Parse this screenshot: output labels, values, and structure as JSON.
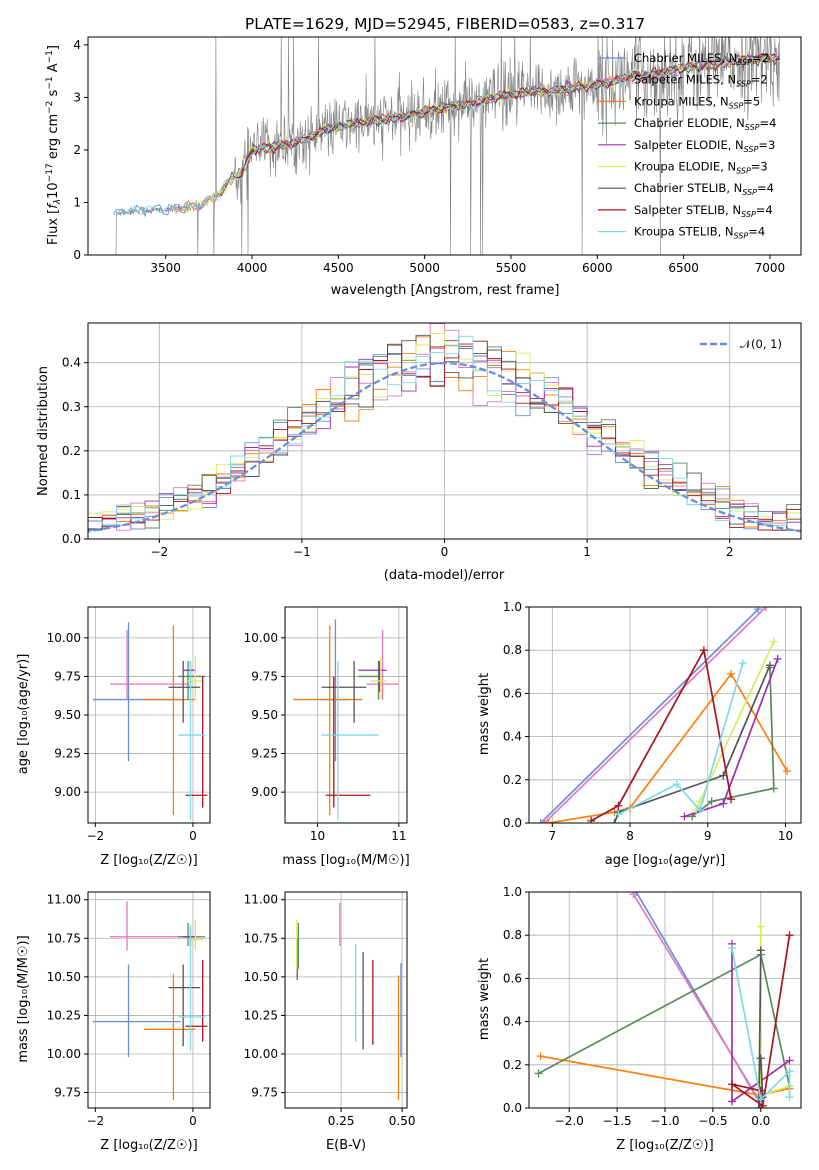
{
  "colors": {
    "Chabrier MILES": "#6b8fd6",
    "Salpeter MILES": "#e377c2",
    "Kroupa MILES": "#ff7f0e",
    "Chabrier ELODIE": "#5b8a5b",
    "Salpeter ELODIE": "#9b2fae",
    "Kroupa ELODIE": "#d4ee5a",
    "Chabrier STELIB": "#555555",
    "Salpeter STELIB": "#a8141c",
    "Kroupa STELIB": "#7fd8e8",
    "data": "#808080",
    "normal": "#6a8fd8"
  },
  "chart_data": [
    {
      "id": "spectrum",
      "type": "line",
      "title": "PLATE=1629, MJD=52945, FIBERID=0583, z=0.317",
      "xlabel": "wavelength [Angstrom, rest frame]",
      "ylabel_pre": "Flux [",
      "ylabel_fl": "f",
      "ylabel_sub": "λ",
      "ylabel_mid": "10",
      "ylabel_exp": "−17",
      "ylabel_post": " erg cm",
      "ylabel_e2": "−2",
      "ylabel_s": " s",
      "ylabel_e1": "−1",
      "ylabel_A": " A",
      "ylabel_e1b": "−1",
      "ylabel_end": "]",
      "xlim": [
        3050,
        7180
      ],
      "ylim": [
        0,
        4.15
      ],
      "xticks": [
        3500,
        4000,
        4500,
        5000,
        5500,
        6000,
        6500,
        7000
      ],
      "yticks": [
        0,
        1,
        2,
        3,
        4
      ],
      "continuum": {
        "x": [
          3200,
          3300,
          3400,
          3500,
          3600,
          3700,
          3800,
          3900,
          3950,
          4000,
          4100,
          4200,
          4300,
          4400,
          4500,
          4600,
          4700,
          4800,
          4900,
          5000,
          5100,
          5200,
          5300,
          5400,
          5500,
          5600,
          5700,
          5800,
          5900,
          6000,
          6100,
          6200,
          6300,
          6400,
          6500,
          6600,
          6700,
          6800,
          6900,
          7000
        ],
        "y": [
          0.8,
          0.84,
          0.86,
          0.85,
          0.9,
          0.95,
          1.15,
          1.5,
          1.6,
          2.0,
          2.05,
          2.1,
          2.2,
          2.35,
          2.45,
          2.5,
          2.55,
          2.6,
          2.65,
          2.72,
          2.8,
          2.82,
          2.9,
          3.0,
          3.05,
          3.1,
          3.12,
          3.15,
          3.2,
          3.25,
          3.3,
          3.4,
          3.42,
          3.5,
          3.55,
          3.6,
          3.65,
          3.7,
          3.72,
          3.75
        ]
      },
      "legend": [
        {
          "model": "Chabrier MILES",
          "nssp": "2"
        },
        {
          "model": "Salpeter MILES",
          "nssp": "2"
        },
        {
          "model": "Kroupa MILES",
          "nssp": "5"
        },
        {
          "model": "Chabrier ELODIE",
          "nssp": "4"
        },
        {
          "model": "Salpeter ELODIE",
          "nssp": "3"
        },
        {
          "model": "Kroupa ELODIE",
          "nssp": "3"
        },
        {
          "model": "Chabrier STELIB",
          "nssp": "4"
        },
        {
          "model": "Salpeter STELIB",
          "nssp": "4"
        },
        {
          "model": "Kroupa STELIB",
          "nssp": "4"
        }
      ],
      "legend_placement": "right",
      "grid": false
    },
    {
      "id": "residuals",
      "type": "histogram",
      "xlabel": "(data-model)/error",
      "ylabel": "Normed distribution",
      "xlim": [
        -2.5,
        2.5
      ],
      "ylim": [
        0,
        0.49
      ],
      "xticks": [
        -2,
        -1,
        0,
        1,
        2
      ],
      "yticks": [
        0.0,
        0.1,
        0.2,
        0.3,
        0.4
      ],
      "legend": "𝒩(0, 1)",
      "legend_placement": "top-right",
      "grid": true,
      "bin_width": 0.1
    },
    {
      "id": "Z-age",
      "type": "errorbar",
      "xlabel": "Z [log₁₀(Z/Z☉)]",
      "ylabel": "age  [log₁₀(age/yr)]",
      "xlim": [
        -2.15,
        0.35
      ],
      "ylim": [
        8.8,
        10.2
      ],
      "xticks": [
        -2,
        0
      ],
      "yticks": [
        9.0,
        9.25,
        9.5,
        9.75,
        10.0
      ],
      "grid": true,
      "points": [
        {
          "m": "Chabrier MILES",
          "x": -1.32,
          "xl": -2.05,
          "xh": -0.25,
          "y": 9.6,
          "yl": 9.2,
          "yh": 10.1
        },
        {
          "m": "Salpeter MILES",
          "x": -1.35,
          "xl": -1.7,
          "xh": -0.1,
          "y": 9.7,
          "yl": 9.6,
          "yh": 10.05
        },
        {
          "m": "Kroupa MILES",
          "x": -0.4,
          "xl": -1.0,
          "xh": 0.05,
          "y": 9.6,
          "yl": 8.85,
          "yh": 10.08
        },
        {
          "m": "Chabrier ELODIE",
          "x": -0.1,
          "xl": -0.3,
          "xh": 0.25,
          "y": 9.75,
          "yl": 9.6,
          "yh": 9.85
        },
        {
          "m": "Salpeter ELODIE",
          "x": -0.05,
          "xl": -0.2,
          "xh": 0.05,
          "y": 9.79,
          "yl": 9.65,
          "yh": 9.85
        },
        {
          "m": "Kroupa ELODIE",
          "x": 0.05,
          "xl": -0.1,
          "xh": 0.2,
          "y": 9.72,
          "yl": 9.6,
          "yh": 9.88
        },
        {
          "m": "Chabrier STELIB",
          "x": -0.2,
          "xl": -0.5,
          "xh": 0.15,
          "y": 9.68,
          "yl": 9.45,
          "yh": 9.85
        },
        {
          "m": "Salpeter STELIB",
          "x": 0.2,
          "xl": -0.15,
          "xh": 0.3,
          "y": 8.98,
          "yl": 8.9,
          "yh": 9.75
        },
        {
          "m": "Kroupa STELIB",
          "x": -0.05,
          "xl": -0.3,
          "xh": 0.25,
          "y": 9.37,
          "yl": 8.82,
          "yh": 9.85
        }
      ]
    },
    {
      "id": "mass-age",
      "type": "errorbar",
      "xlabel": "mass [log₁₀(M/M☉)]",
      "ylabel": "",
      "xlim": [
        9.6,
        11.1
      ],
      "ylim": [
        8.8,
        10.2
      ],
      "xticks": [
        10,
        11
      ],
      "yticks": [
        9.0,
        9.25,
        9.5,
        9.75,
        10.0
      ],
      "grid": true,
      "points": [
        {
          "m": "Chabrier MILES",
          "x": 10.22,
          "xl": 10.05,
          "xh": 10.4,
          "y": 9.6,
          "yl": 9.2,
          "yh": 10.12
        },
        {
          "m": "Salpeter MILES",
          "x": 10.8,
          "xl": 10.6,
          "xh": 11.0,
          "y": 9.7,
          "yl": 9.6,
          "yh": 10.05
        },
        {
          "m": "Kroupa MILES",
          "x": 10.15,
          "xl": 9.7,
          "xh": 10.55,
          "y": 9.6,
          "yl": 8.85,
          "yh": 10.08
        },
        {
          "m": "Chabrier ELODIE",
          "x": 10.75,
          "xl": 10.5,
          "xh": 10.8,
          "y": 9.75,
          "yl": 9.6,
          "yh": 9.85
        },
        {
          "m": "Salpeter ELODIE",
          "x": 10.76,
          "xl": 10.5,
          "xh": 10.85,
          "y": 9.79,
          "yl": 9.65,
          "yh": 9.85
        },
        {
          "m": "Kroupa ELODIE",
          "x": 10.78,
          "xl": 10.65,
          "xh": 10.85,
          "y": 9.72,
          "yl": 9.6,
          "yh": 9.88
        },
        {
          "m": "Chabrier STELIB",
          "x": 10.45,
          "xl": 10.05,
          "xh": 10.6,
          "y": 9.68,
          "yl": 9.45,
          "yh": 9.85
        },
        {
          "m": "Salpeter STELIB",
          "x": 10.2,
          "xl": 10.1,
          "xh": 10.65,
          "y": 8.98,
          "yl": 8.9,
          "yh": 9.75
        },
        {
          "m": "Kroupa STELIB",
          "x": 10.25,
          "xl": 10.05,
          "xh": 10.75,
          "y": 9.37,
          "yl": 8.82,
          "yh": 9.85
        }
      ]
    },
    {
      "id": "age-weight",
      "type": "line",
      "xlabel": "age  [log₁₀(age/yr)]",
      "ylabel": "mass weight",
      "xlim": [
        6.7,
        10.2
      ],
      "ylim": [
        0,
        1
      ],
      "xticks": [
        7,
        8,
        9,
        10
      ],
      "yticks": [
        0.0,
        0.2,
        0.4,
        0.6,
        0.8,
        1.0
      ],
      "grid": true,
      "series": [
        {
          "m": "Chabrier MILES",
          "x": [
            6.85,
            9.65
          ],
          "y": [
            0.0,
            0.99
          ]
        },
        {
          "m": "Salpeter MILES",
          "x": [
            6.9,
            9.75
          ],
          "y": [
            0.0,
            1.0
          ]
        },
        {
          "m": "Kroupa MILES",
          "x": [
            6.95,
            7.8,
            8.0,
            9.3,
            10.02
          ],
          "y": [
            0.0,
            0.05,
            0.07,
            0.69,
            0.24
          ]
        },
        {
          "m": "Chabrier ELODIE",
          "x": [
            8.8,
            9.05,
            9.85,
            9.8
          ],
          "y": [
            0.03,
            0.1,
            0.16,
            0.72
          ]
        },
        {
          "m": "Salpeter ELODIE",
          "x": [
            8.7,
            9.2,
            9.9
          ],
          "y": [
            0.03,
            0.09,
            0.76
          ]
        },
        {
          "m": "Kroupa ELODIE",
          "x": [
            8.85,
            8.9,
            9.85
          ],
          "y": [
            0.06,
            0.1,
            0.84
          ]
        },
        {
          "m": "Chabrier STELIB",
          "x": [
            7.8,
            7.85,
            9.2,
            9.8
          ],
          "y": [
            0.0,
            0.05,
            0.22,
            0.73
          ]
        },
        {
          "m": "Salpeter STELIB",
          "x": [
            7.5,
            7.85,
            8.95,
            9.3
          ],
          "y": [
            0.01,
            0.08,
            0.8,
            0.11
          ]
        },
        {
          "m": "Kroupa STELIB",
          "x": [
            7.85,
            8.6,
            8.9,
            9.45
          ],
          "y": [
            0.04,
            0.18,
            0.06,
            0.74
          ]
        }
      ]
    },
    {
      "id": "Z-mass",
      "type": "errorbar",
      "xlabel": "Z [log₁₀(Z/Z☉)]",
      "ylabel": "mass [log₁₀(M/M☉)]",
      "xlim": [
        -2.15,
        0.35
      ],
      "ylim": [
        9.65,
        11.05
      ],
      "xticks": [
        -2,
        0
      ],
      "yticks": [
        9.75,
        10.0,
        10.25,
        10.5,
        10.75,
        11.0
      ],
      "grid": true,
      "points": [
        {
          "m": "Chabrier MILES",
          "x": -1.32,
          "xl": -2.05,
          "xh": -0.25,
          "y": 10.21,
          "yl": 9.98,
          "yh": 10.58
        },
        {
          "m": "Salpeter MILES",
          "x": -1.35,
          "xl": -1.7,
          "xh": -0.1,
          "y": 10.76,
          "yl": 10.67,
          "yh": 10.99
        },
        {
          "m": "Kroupa MILES",
          "x": -0.4,
          "xl": -1.0,
          "xh": 0.05,
          "y": 10.16,
          "yl": 9.7,
          "yh": 10.52
        },
        {
          "m": "Chabrier ELODIE",
          "x": -0.1,
          "xl": -0.3,
          "xh": 0.25,
          "y": 10.76,
          "yl": 10.7,
          "yh": 10.85
        },
        {
          "m": "Salpeter ELODIE",
          "x": -0.05,
          "xl": -0.2,
          "xh": 0.05,
          "y": 10.76,
          "yl": 10.7,
          "yh": 10.82
        },
        {
          "m": "Kroupa ELODIE",
          "x": 0.05,
          "xl": -0.1,
          "xh": 0.2,
          "y": 10.74,
          "yl": 10.68,
          "yh": 10.87
        },
        {
          "m": "Chabrier STELIB",
          "x": -0.2,
          "xl": -0.5,
          "xh": 0.15,
          "y": 10.43,
          "yl": 10.05,
          "yh": 10.58
        },
        {
          "m": "Salpeter STELIB",
          "x": 0.2,
          "xl": -0.15,
          "xh": 0.3,
          "y": 10.18,
          "yl": 10.08,
          "yh": 10.61
        },
        {
          "m": "Kroupa STELIB",
          "x": -0.05,
          "xl": -0.3,
          "xh": 0.25,
          "y": 10.24,
          "yl": 10.02,
          "yh": 10.84
        }
      ]
    },
    {
      "id": "ebv-mass",
      "type": "errorbar",
      "xlabel": "E(B-V)",
      "ylabel": "",
      "xlim": [
        0.02,
        0.52
      ],
      "ylim": [
        9.65,
        11.05
      ],
      "xticks": [
        0.25,
        0.5
      ],
      "ticklabels": [
        "0.25",
        "0.50"
      ],
      "yticks": [
        9.75,
        10.0,
        10.25,
        10.5,
        10.75,
        11.0
      ],
      "grid": true,
      "points": [
        {
          "m": "Chabrier MILES",
          "x": 0.495,
          "yl": 9.98,
          "yh": 10.59
        },
        {
          "m": "Salpeter MILES",
          "x": 0.245,
          "yl": 10.7,
          "yh": 10.98
        },
        {
          "m": "Kroupa MILES",
          "x": 0.485,
          "yl": 9.7,
          "yh": 10.51
        },
        {
          "m": "Chabrier ELODIE",
          "x": 0.075,
          "yl": 10.55,
          "yh": 10.85
        },
        {
          "m": "Salpeter ELODIE",
          "x": 0.07,
          "yl": 10.48,
          "yh": 10.75
        },
        {
          "m": "Kroupa ELODIE",
          "x": 0.068,
          "yl": 10.55,
          "yh": 10.87
        },
        {
          "m": "Chabrier STELIB",
          "x": 0.34,
          "yl": 10.03,
          "yh": 10.66
        },
        {
          "m": "Salpeter STELIB",
          "x": 0.38,
          "yl": 10.06,
          "yh": 10.61
        },
        {
          "m": "Kroupa STELIB",
          "x": 0.31,
          "yl": 10.08,
          "yh": 10.71
        }
      ]
    },
    {
      "id": "Z-weight",
      "type": "line",
      "xlabel": "Z [log₁₀(Z/Z☉)]",
      "ylabel": "mass weight",
      "xlim": [
        -2.42,
        0.42
      ],
      "ylim": [
        0,
        1
      ],
      "xticks": [
        -2.0,
        -1.5,
        -1.0,
        -0.5,
        0.0
      ],
      "ticklabels": [
        "−2.0",
        "−1.5",
        "−1.0",
        "−0.5",
        "0.0"
      ],
      "yticks": [
        0.0,
        0.2,
        0.4,
        0.6,
        0.8,
        1.0
      ],
      "grid": true,
      "series": [
        {
          "m": "Chabrier MILES",
          "x": [
            -1.3,
            0.02
          ],
          "y": [
            1.0,
            0.0
          ]
        },
        {
          "m": "Salpeter MILES",
          "x": [
            -1.33,
            0.02
          ],
          "y": [
            0.99,
            0.01
          ]
        },
        {
          "m": "Kroupa MILES",
          "x": [
            -2.3,
            -0.02,
            0.3,
            0.3
          ],
          "y": [
            0.24,
            0.06,
            0.09,
            0.1
          ]
        },
        {
          "m": "Chabrier ELODIE",
          "x": [
            -2.32,
            0.0,
            0.3
          ],
          "y": [
            0.16,
            0.71,
            0.1
          ]
        },
        {
          "m": "Salpeter ELODIE",
          "x": [
            -0.3,
            -0.3,
            0.3
          ],
          "y": [
            0.76,
            0.03,
            0.22
          ]
        },
        {
          "m": "Kroupa ELODIE",
          "x": [
            0.0,
            0.0,
            0.3
          ],
          "y": [
            0.84,
            0.06,
            0.1
          ]
        },
        {
          "m": "Chabrier STELIB",
          "x": [
            0.0,
            0.02,
            -0.02,
            0.0
          ],
          "y": [
            0.23,
            0.05,
            0.0,
            0.73
          ]
        },
        {
          "m": "Salpeter STELIB",
          "x": [
            0.3,
            0.02,
            -0.3,
            0.0
          ],
          "y": [
            0.8,
            0.01,
            0.11,
            0.08
          ]
        },
        {
          "m": "Kroupa STELIB",
          "x": [
            -0.3,
            0.0,
            0.3,
            0.3
          ],
          "y": [
            0.74,
            0.04,
            0.17,
            0.05
          ]
        }
      ]
    }
  ]
}
